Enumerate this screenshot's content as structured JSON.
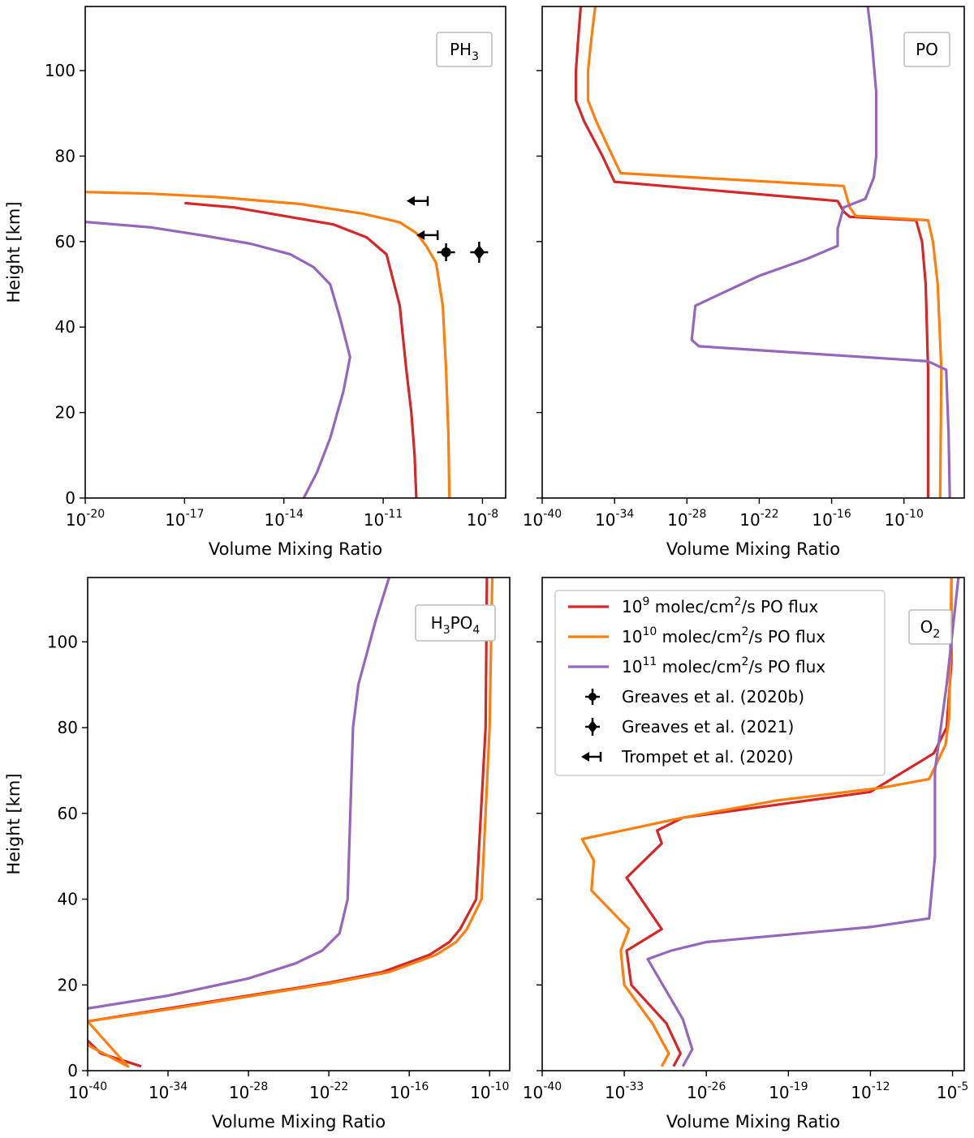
{
  "legend": {
    "placement": "upper-left of O2 panel",
    "entries": [
      {
        "mant": "10",
        "exp": "9",
        "mid": " molec/cm",
        "exp2": "2",
        "tail": "/s PO flux",
        "color": "#d62728",
        "kind": "line"
      },
      {
        "mant": "10",
        "exp": "10",
        "mid": " molec/cm",
        "exp2": "2",
        "tail": "/s PO flux",
        "color": "#ff7f0e",
        "kind": "line"
      },
      {
        "mant": "10",
        "exp": "11",
        "mid": " molec/cm",
        "exp2": "2",
        "tail": "/s PO flux",
        "color": "#9467bd",
        "kind": "line"
      },
      {
        "text": "Greaves et al. (2020b)",
        "kind": "errorbar"
      },
      {
        "text": "Greaves et al. (2021)",
        "kind": "diamond"
      },
      {
        "text": "Trompet et al. (2020)",
        "kind": "upperlimit"
      }
    ]
  },
  "chart_data": [
    {
      "type": "line",
      "panel_label": {
        "base": "PH",
        "sub": "3",
        "base2": "",
        "sub2": ""
      },
      "xlabel": "Volume Mixing Ratio",
      "ylabel": "Height [km]",
      "xscale": "log",
      "xlim_log10": [
        -20,
        -7.3
      ],
      "ylim": [
        0,
        115
      ],
      "x_tick_exponents": [
        "-20",
        "-17",
        "-14",
        "-11",
        "-8"
      ],
      "y_ticks": [
        "0",
        "20",
        "40",
        "60",
        "80",
        "100"
      ],
      "show_y_labels": true,
      "series": [
        {
          "color": "#d62728",
          "log10_vmr": [
            -10.0,
            -10.05,
            -10.15,
            -10.3,
            -10.5,
            -10.9,
            -11.5,
            -12.5,
            -14.0,
            -15.5,
            -17.0
          ],
          "height_km": [
            0,
            10,
            20,
            30,
            45,
            57,
            61,
            64,
            66,
            68,
            69
          ]
        },
        {
          "color": "#ff7f0e",
          "log10_vmr": [
            -9.0,
            -9.03,
            -9.1,
            -9.2,
            -9.4,
            -9.7,
            -10.0,
            -10.5,
            -11.6,
            -13.5,
            -16.0,
            -18.0,
            -20.0
          ],
          "height_km": [
            0,
            15,
            30,
            45,
            55,
            59,
            62,
            64.5,
            66.5,
            68.8,
            70.4,
            71.2,
            71.6
          ]
        },
        {
          "color": "#9467bd",
          "log10_vmr": [
            -13.4,
            -13.0,
            -12.6,
            -12.2,
            -12.0,
            -12.3,
            -12.6,
            -13.1,
            -13.8,
            -15.0,
            -16.5,
            -18.0,
            -20.0
          ],
          "height_km": [
            0,
            6,
            14,
            25,
            33,
            42,
            50,
            54,
            57,
            59.5,
            61.5,
            63.3,
            64.6
          ]
        }
      ],
      "observations": [
        {
          "label": "Greaves et al. (2020b)",
          "log10_vmr": -9.1,
          "height_km": 57.5,
          "kind": "errorbar"
        },
        {
          "label": "Greaves et al. (2021)",
          "log10_vmr": -8.1,
          "height_km": 57.5,
          "kind": "diamond"
        },
        {
          "label": "Trompet et al. (2020)",
          "log10_vmr": -9.9,
          "height_km": 69.5,
          "kind": "upperlimit"
        },
        {
          "label": "Trompet et al. (2020)",
          "log10_vmr": -9.6,
          "height_km": 61.5,
          "kind": "upperlimit"
        }
      ]
    },
    {
      "type": "line",
      "panel_label": {
        "base": "PO",
        "sub": "",
        "base2": "",
        "sub2": ""
      },
      "xlabel": "Volume Mixing Ratio",
      "ylabel": "",
      "xscale": "log",
      "xlim_log10": [
        -40,
        -5
      ],
      "ylim": [
        0,
        115
      ],
      "x_tick_exponents": [
        "-40",
        "-34",
        "-28",
        "-22",
        "-16",
        "-10"
      ],
      "y_ticks": [
        "0",
        "20",
        "40",
        "60",
        "80",
        "100"
      ],
      "show_y_labels": false,
      "series": [
        {
          "color": "#d62728",
          "log10_vmr": [
            -8.0,
            -8.0,
            -8.2,
            -8.5,
            -9.0,
            -14.5,
            -15.0,
            -15.5,
            -34.0,
            -35.0,
            -36.5,
            -37.2,
            -37.2,
            -37.0,
            -36.8
          ],
          "height_km": [
            0,
            30,
            50,
            60,
            65,
            65.8,
            67,
            69.5,
            74,
            80,
            88,
            93,
            100,
            108,
            115
          ]
        },
        {
          "color": "#ff7f0e",
          "log10_vmr": [
            -7.0,
            -6.9,
            -7.2,
            -7.6,
            -8.0,
            -14.0,
            -14.5,
            -15.0,
            -33.5,
            -34.5,
            -35.5,
            -36.2,
            -36.2,
            -35.9,
            -35.6
          ],
          "height_km": [
            0,
            30,
            50,
            60,
            65,
            66,
            68,
            73,
            76,
            82,
            88,
            93,
            100,
            108,
            115
          ]
        },
        {
          "color": "#9467bd",
          "log10_vmr": [
            -6.2,
            -6.3,
            -6.5,
            -8.0,
            -27.0,
            -27.6,
            -27.3,
            -22.0,
            -18.0,
            -15.5,
            -15.5,
            -15.0,
            -13.2,
            -12.5,
            -12.3,
            -12.3,
            -12.7,
            -13.0
          ],
          "height_km": [
            0,
            15,
            30,
            32,
            35.5,
            37,
            45,
            52,
            56,
            59,
            63,
            68,
            70,
            75,
            80,
            95,
            108,
            115
          ]
        }
      ]
    },
    {
      "type": "line",
      "panel_label": {
        "base": "H",
        "sub": "3",
        "base2": "PO",
        "sub2": "4"
      },
      "xlabel": "Volume Mixing Ratio",
      "ylabel": "Height [km]",
      "xscale": "log",
      "xlim_log10": [
        -40,
        -8.5
      ],
      "ylim": [
        0,
        115
      ],
      "x_tick_exponents": [
        "-40",
        "-34",
        "-28",
        "-22",
        "-16",
        "-10"
      ],
      "y_ticks": [
        "0",
        "20",
        "40",
        "60",
        "80",
        "100"
      ],
      "show_y_labels": true,
      "series": [
        {
          "color": "#d62728",
          "log10_vmr": [
            -40.0,
            -39.0,
            -36.0,
            -40.0
          ],
          "height_km": [
            7,
            4,
            1,
            11.5
          ],
          "segment_breaks": [
            3
          ]
        },
        {
          "color": "#d62728",
          "log10_vmr": [
            -40.0,
            -34.0,
            -28.0,
            -22.0,
            -18.0,
            -14.5,
            -13.0,
            -12.2,
            -11.0,
            -10.3,
            -10.2
          ],
          "height_km": [
            11.5,
            14.5,
            17.5,
            20.5,
            23,
            27,
            30,
            33,
            40,
            80,
            115
          ]
        },
        {
          "color": "#ff7f0e",
          "log10_vmr": [
            -40.0,
            -37.0,
            -40.0,
            -34.0,
            -28.0,
            -22.0,
            -17.5,
            -14.0,
            -12.5,
            -11.7,
            -10.6,
            -10.0,
            -9.8
          ],
          "height_km": [
            6,
            1,
            11.5,
            14.3,
            17.3,
            20.3,
            23,
            27,
            30,
            33,
            40,
            80,
            115
          ]
        },
        {
          "color": "#9467bd",
          "log10_vmr": [
            -40.0,
            -34.0,
            -28.0,
            -24.5,
            -22.5,
            -21.2,
            -20.6,
            -20.4,
            -20.2,
            -19.8,
            -18.5,
            -17.5
          ],
          "height_km": [
            14.5,
            17.5,
            21.5,
            25,
            28,
            32,
            40,
            60,
            80,
            90,
            105,
            115
          ]
        }
      ]
    },
    {
      "type": "line",
      "panel_label": {
        "base": "O",
        "sub": "2",
        "base2": "",
        "sub2": ""
      },
      "xlabel": "Volume Mixing Ratio",
      "ylabel": "",
      "xscale": "log",
      "xlim_log10": [
        -40,
        -4
      ],
      "ylim": [
        0,
        115
      ],
      "x_tick_exponents": [
        "-40",
        "-33",
        "-26",
        "-19",
        "-12",
        "-5"
      ],
      "y_ticks": [
        "0",
        "20",
        "40",
        "60",
        "80",
        "100"
      ],
      "show_y_labels": false,
      "series": [
        {
          "color": "#d62728",
          "log10_vmr": [
            -28.8,
            -28.2,
            -29.4,
            -32.4,
            -32.8,
            -29.8,
            -32.8,
            -29.8,
            -30.2,
            -28.0,
            -20.0,
            -12.0,
            -9.0,
            -6.6,
            -5.5,
            -5.1,
            -5.1
          ],
          "height_km": [
            1,
            4,
            11,
            20,
            28,
            33,
            45,
            53,
            56,
            59,
            62,
            65,
            70,
            74,
            80,
            95,
            115
          ]
        },
        {
          "color": "#ff7f0e",
          "log10_vmr": [
            -29.8,
            -29.2,
            -30.6,
            -33.0,
            -33.3,
            -32.6,
            -35.8,
            -35.6,
            -36.6,
            -28.0,
            -20.0,
            -11.0,
            -7.0,
            -5.6,
            -5.3,
            -5.2,
            -5.1
          ],
          "height_km": [
            1,
            4,
            11,
            20,
            28,
            33,
            42,
            49,
            54,
            59,
            63,
            66,
            68,
            76,
            82,
            95,
            115
          ]
        },
        {
          "color": "#9467bd",
          "log10_vmr": [
            -28.0,
            -27.2,
            -28.0,
            -31.0,
            -29.0,
            -26.0,
            -18.0,
            -12.0,
            -7.0,
            -6.5,
            -6.5,
            -5.5,
            -4.5
          ],
          "height_km": [
            1,
            5,
            12,
            26,
            28,
            30,
            32,
            33.5,
            35.5,
            50,
            70,
            90,
            115
          ]
        }
      ]
    }
  ]
}
